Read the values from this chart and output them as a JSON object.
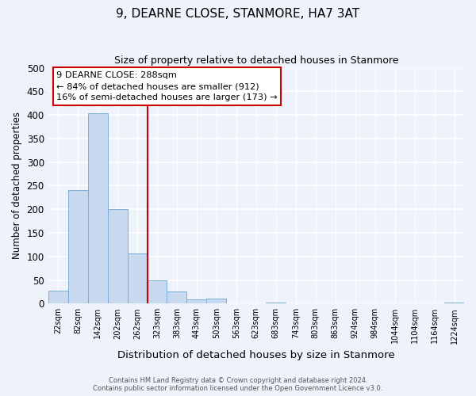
{
  "title": "9, DEARNE CLOSE, STANMORE, HA7 3AT",
  "subtitle": "Size of property relative to detached houses in Stanmore",
  "xlabel": "Distribution of detached houses by size in Stanmore",
  "ylabel": "Number of detached properties",
  "bar_labels": [
    "22sqm",
    "82sqm",
    "142sqm",
    "202sqm",
    "262sqm",
    "323sqm",
    "383sqm",
    "443sqm",
    "503sqm",
    "563sqm",
    "623sqm",
    "683sqm",
    "743sqm",
    "803sqm",
    "863sqm",
    "924sqm",
    "984sqm",
    "1044sqm",
    "1104sqm",
    "1164sqm",
    "1224sqm"
  ],
  "bar_heights": [
    27,
    240,
    403,
    200,
    107,
    49,
    25,
    9,
    10,
    0,
    0,
    3,
    0,
    0,
    0,
    0,
    0,
    0,
    0,
    0,
    3
  ],
  "bar_color": "#c8d8ee",
  "bar_edge_color": "#7bafd4",
  "ylim": [
    0,
    500
  ],
  "yticks": [
    0,
    50,
    100,
    150,
    200,
    250,
    300,
    350,
    400,
    450,
    500
  ],
  "property_line_index": 4.5,
  "property_line_color": "#cc0000",
  "annotation_title": "9 DEARNE CLOSE: 288sqm",
  "annotation_line1": "← 84% of detached houses are smaller (912)",
  "annotation_line2": "16% of semi-detached houses are larger (173) →",
  "annotation_box_color": "#ffffff",
  "annotation_box_edge": "#cc0000",
  "footer_line1": "Contains HM Land Registry data © Crown copyright and database right 2024.",
  "footer_line2": "Contains public sector information licensed under the Open Government Licence v3.0.",
  "background_color": "#eef2fa",
  "grid_color": "#ffffff",
  "plot_bg_color": "#eef2fa"
}
